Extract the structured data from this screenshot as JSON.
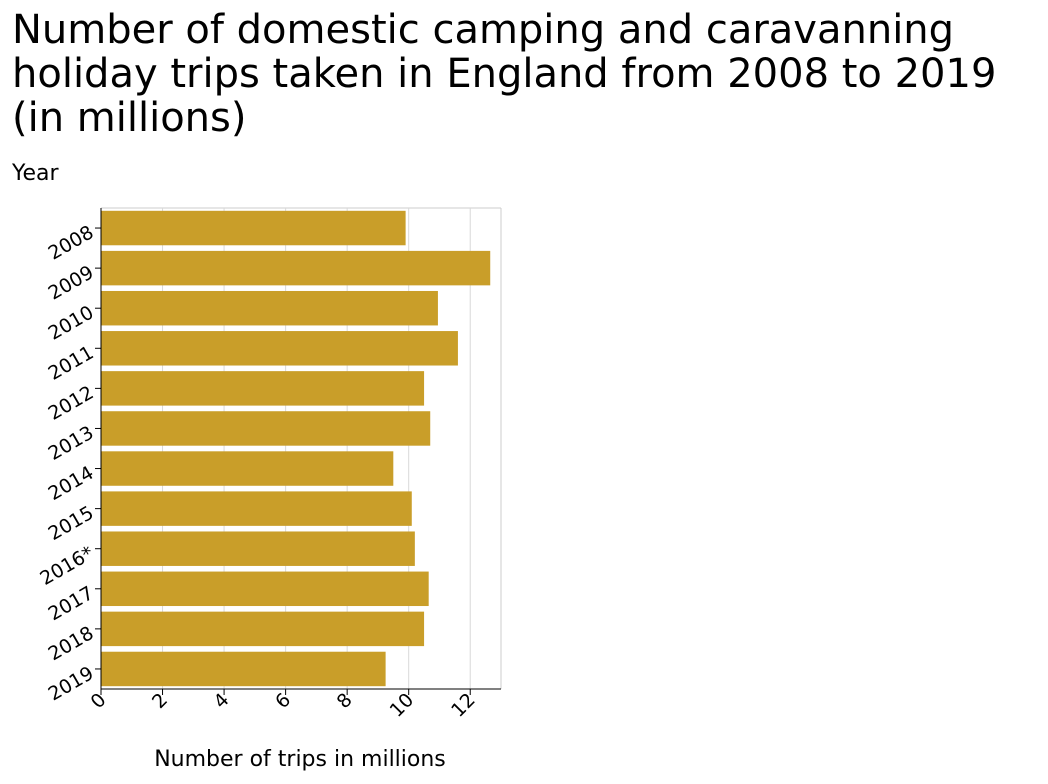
{
  "chart_data": {
    "type": "bar",
    "orientation": "horizontal",
    "title": "Number of domestic camping and caravanning holiday trips taken in England from 2008 to 2019 (in millions)",
    "xlabel": "Number of trips in millions",
    "ylabel": "Year",
    "categories": [
      "2008",
      "2009",
      "2010",
      "2011",
      "2012",
      "2013",
      "2014",
      "2015",
      "2016*",
      "2017",
      "2018",
      "2019"
    ],
    "values": [
      9.9,
      12.65,
      10.95,
      11.6,
      10.5,
      10.7,
      9.5,
      10.1,
      10.2,
      10.65,
      10.5,
      9.25
    ],
    "xlim": [
      0,
      13
    ],
    "xticks": [
      0,
      2,
      4,
      6,
      8,
      10,
      12
    ],
    "grid": "vertical",
    "legend": "none",
    "bar_color": "#c99e29"
  }
}
